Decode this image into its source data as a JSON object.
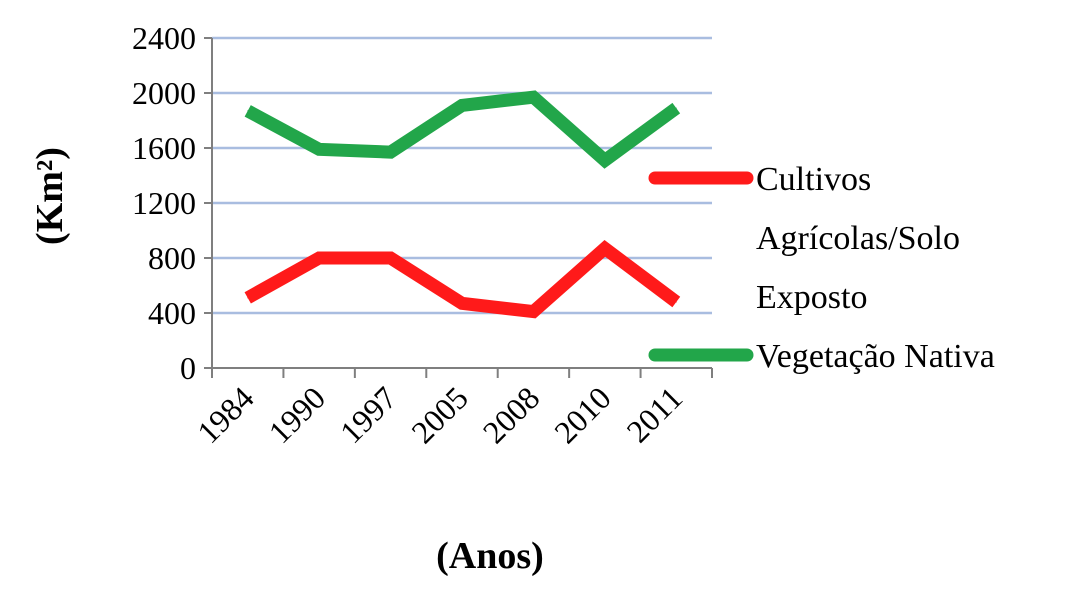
{
  "chart_data": {
    "type": "line",
    "categories": [
      "1984",
      "1990",
      "1997",
      "2005",
      "2008",
      "2010",
      "2011"
    ],
    "series": [
      {
        "name": "Cultivos Agrícolas/Solo Exposto",
        "name_lines": [
          "Cultivos",
          "Agrícolas/Solo",
          "Exposto"
        ],
        "color": "#ff1a1a",
        "values": [
          510,
          800,
          800,
          470,
          410,
          870,
          480
        ]
      },
      {
        "name": "Vegetação Nativa",
        "name_lines": [
          "Vegetação Nativa"
        ],
        "color": "#22a64a",
        "values": [
          1870,
          1590,
          1570,
          1910,
          1970,
          1510,
          1890
        ]
      }
    ],
    "yticks": [
      "0",
      "400",
      "800",
      "1200",
      "1600",
      "2000",
      "2400"
    ],
    "ylim": [
      0,
      2400
    ],
    "xlabel": "(Anos)",
    "ylabel": "(Km²)",
    "grid": true,
    "grid_color": "#a9bde0",
    "legend_position": "right"
  }
}
